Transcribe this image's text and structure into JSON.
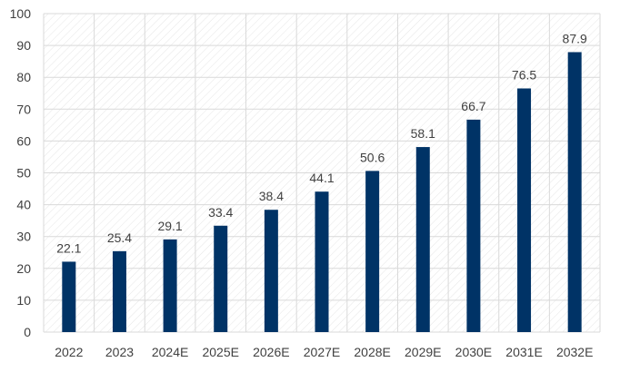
{
  "colors": {
    "bar": "#003366",
    "grid": "#d9d9d9",
    "hatch": "#e6e6e6",
    "text": "#404040"
  },
  "chart_data": {
    "type": "bar",
    "title": "",
    "xlabel": "",
    "ylabel": "",
    "categories": [
      "2022",
      "2023",
      "2024E",
      "2025E",
      "2026E",
      "2027E",
      "2028E",
      "2029E",
      "2030E",
      "2031E",
      "2032E"
    ],
    "values": [
      22.1,
      25.4,
      29.1,
      33.4,
      38.4,
      44.1,
      50.6,
      58.1,
      66.7,
      76.5,
      87.9
    ],
    "data_labels": [
      "22.1",
      "25.4",
      "29.1",
      "33.4",
      "38.4",
      "44.1",
      "50.6",
      "58.1",
      "66.7",
      "76.5",
      "87.9"
    ],
    "ylim": [
      0,
      100
    ],
    "yticks": [
      0,
      10,
      20,
      30,
      40,
      50,
      60,
      70,
      80,
      90,
      100
    ],
    "ytick_labels": [
      "0",
      "10",
      "20",
      "30",
      "40",
      "50",
      "60",
      "70",
      "80",
      "90",
      "100"
    ],
    "grid": true,
    "legend": "none"
  }
}
